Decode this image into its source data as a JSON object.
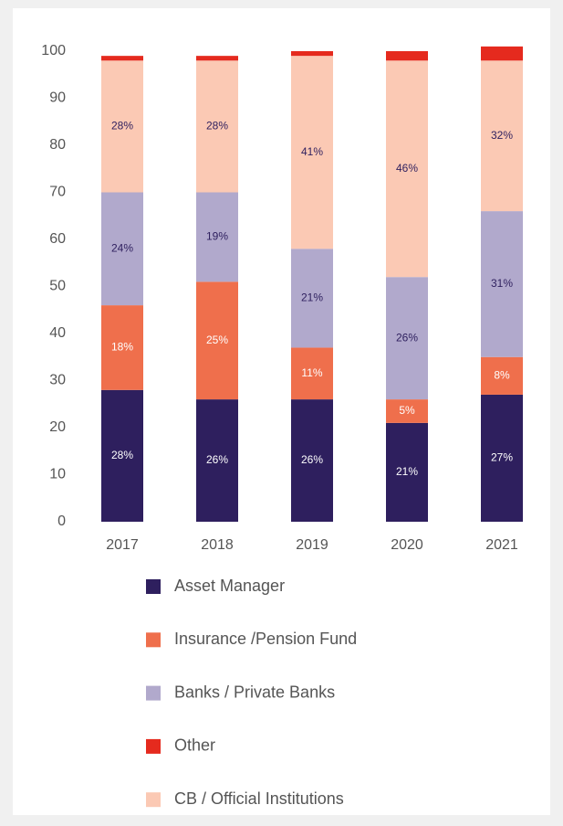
{
  "chart_data": {
    "type": "stacked_bar",
    "categories": [
      "2017",
      "2018",
      "2019",
      "2020",
      "2021"
    ],
    "series": [
      {
        "name": "Asset Manager",
        "color": "#2e1f5e",
        "values": [
          28,
          26,
          26,
          21,
          27
        ],
        "value_labels": [
          "28%",
          "26%",
          "26%",
          "21%",
          "27%"
        ]
      },
      {
        "name": "Insurance /Pension Fund",
        "color": "#ef6f4c",
        "values": [
          18,
          25,
          11,
          5,
          8
        ],
        "value_labels": [
          "18%",
          "25%",
          "11%",
          "5%",
          "8%"
        ]
      },
      {
        "name": "Banks / Private Banks",
        "color": "#b1a9cc",
        "values": [
          24,
          19,
          21,
          26,
          31
        ],
        "value_labels": [
          "24%",
          "19%",
          "21%",
          "26%",
          "31%"
        ]
      },
      {
        "name": "Other",
        "color": "#e52a1e",
        "values": [
          1,
          1,
          1,
          2,
          3
        ]
      },
      {
        "name": "CB / Official Institutions",
        "color": "#fbc9b4",
        "values": [
          28,
          28,
          41,
          46,
          32
        ],
        "value_labels": [
          "28%",
          "28%",
          "41%",
          "46%",
          "32%"
        ]
      }
    ],
    "stack_order": [
      0,
      1,
      2,
      4,
      3
    ],
    "ylim": [
      0,
      100
    ],
    "yticks": [
      0,
      10,
      20,
      30,
      40,
      50,
      60,
      70,
      80,
      90,
      100
    ],
    "grid": false
  }
}
